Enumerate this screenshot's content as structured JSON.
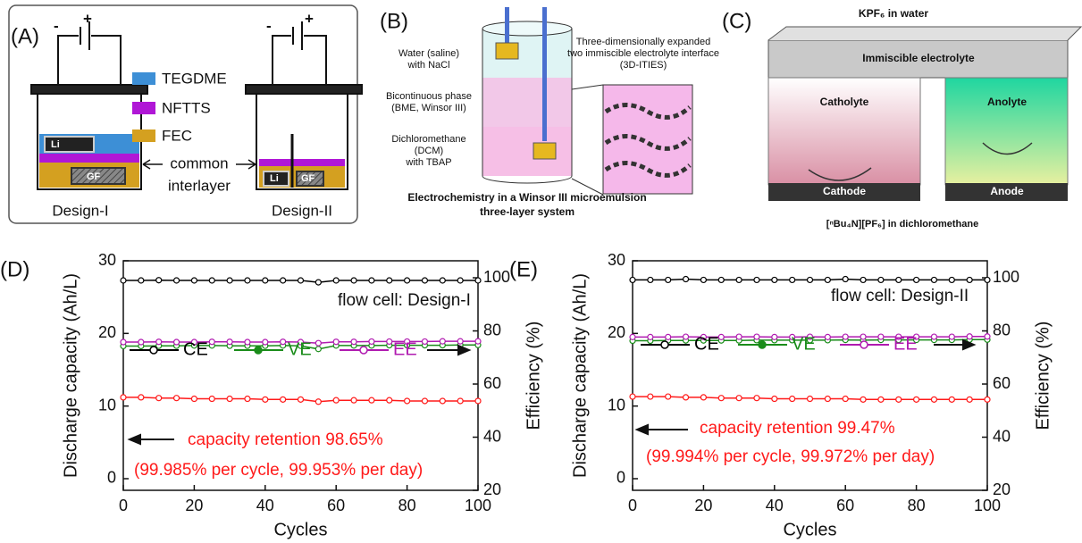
{
  "panel_a": {
    "label": "(A)",
    "terminals": [
      "-",
      "+",
      "-",
      "+"
    ],
    "legend": [
      "TEGDME",
      "NFTTS",
      "FEC"
    ],
    "cell_labels": [
      "Li",
      "GF",
      "Li",
      "GF"
    ],
    "interlayer": [
      "common",
      "interlayer"
    ],
    "designs": [
      "Design-I",
      "Design-II"
    ]
  },
  "panel_b": {
    "label": "(B)",
    "phases": [
      "Water (saline)",
      "with NaCl",
      "Bicontinuous phase",
      "(BME, Winsor III)",
      "Dichloromethane",
      "(DCM)",
      "with TBAP"
    ],
    "interface": [
      "Three-dimensionally expanded",
      "two immiscible electrolyte interface",
      "(3D-ITIES)"
    ],
    "caption": [
      "Electrochemistry in a Winsor III microemulsion",
      "three-layer system"
    ]
  },
  "panel_c": {
    "label": "(C)",
    "top": "KPF₆ in water",
    "middle": "Immiscible electrolyte",
    "catholyte": "Catholyte",
    "anolyte": "Anolyte",
    "cathode": "Cathode",
    "anode": "Anode",
    "bottom": "[ⁿBu₄N][PF₆] in dichloromethane"
  },
  "chart_data": [
    {
      "type": "line",
      "panel_label": "(D)",
      "xlabel": "Cycles",
      "ylabel": "Discharge capacity (Ah/L)",
      "y2label": "Efficiency (%)",
      "annotations": [
        "flow cell: Design-I",
        "capacity retention 98.65%",
        "(99.985% per cycle, 99.953% per day)"
      ],
      "xlim": [
        0,
        100
      ],
      "xticks": [
        0,
        20,
        40,
        60,
        80,
        100
      ],
      "ylim": [
        -1.6,
        30
      ],
      "yticks": [
        0,
        10,
        20,
        30
      ],
      "y2lim": [
        20,
        106.4
      ],
      "y2ticks": [
        20,
        40,
        60,
        80,
        100
      ],
      "x": [
        0,
        5,
        10,
        15,
        20,
        25,
        30,
        35,
        40,
        45,
        50,
        55,
        60,
        65,
        70,
        75,
        80,
        85,
        90,
        95,
        100
      ],
      "series": [
        {
          "color": "#ff1a1a",
          "values": [
            11.2,
            11.2,
            11.1,
            11.1,
            11.0,
            11.0,
            11.0,
            11.0,
            10.9,
            10.9,
            10.9,
            10.6,
            10.8,
            10.8,
            10.8,
            10.8,
            10.7,
            10.7,
            10.7,
            10.7,
            10.7
          ]
        },
        {
          "name": "CE",
          "color": "#000000",
          "axis": "y2",
          "values": [
            99.0,
            99.0,
            99.1,
            99.0,
            99.0,
            99.0,
            99.0,
            99.0,
            99.0,
            99.0,
            99.0,
            98.3,
            99.0,
            99.0,
            99.0,
            99.0,
            99.0,
            99.0,
            99.0,
            99.0,
            99.0
          ]
        },
        {
          "name": "VE",
          "color": "#1a8c1a",
          "axis": "y2",
          "values": [
            74.3,
            74.3,
            74.4,
            74.4,
            74.5,
            74.5,
            74.4,
            74.4,
            74.4,
            74.5,
            74.4,
            73.2,
            74.5,
            74.5,
            74.5,
            74.6,
            74.6,
            74.6,
            74.6,
            74.7,
            74.7
          ]
        },
        {
          "name": "EE",
          "color": "#b01ab0",
          "axis": "y2",
          "values": [
            75.8,
            75.8,
            75.9,
            75.8,
            75.8,
            75.9,
            75.9,
            75.8,
            75.8,
            75.9,
            75.8,
            75.4,
            75.9,
            75.9,
            76.0,
            76.0,
            76.0,
            76.0,
            76.1,
            76.1,
            76.1
          ]
        }
      ]
    },
    {
      "type": "line",
      "panel_label": "(E)",
      "xlabel": "Cycles",
      "ylabel": "Discharge capacity (Ah/L)",
      "y2label": "Efficiency (%)",
      "annotations": [
        "flow cell: Design-II",
        "capacity retention 99.47%",
        "(99.994% per cycle, 99.972% per day)"
      ],
      "xlim": [
        0,
        100
      ],
      "xticks": [
        0,
        20,
        40,
        60,
        80,
        100
      ],
      "ylim": [
        -1.6,
        30
      ],
      "yticks": [
        0,
        10,
        20,
        30
      ],
      "y2lim": [
        20,
        106.4
      ],
      "y2ticks": [
        20,
        40,
        60,
        80,
        100
      ],
      "x": [
        0,
        5,
        10,
        15,
        20,
        25,
        30,
        35,
        40,
        45,
        50,
        55,
        60,
        65,
        70,
        75,
        80,
        85,
        90,
        95,
        100
      ],
      "series": [
        {
          "color": "#ff1a1a",
          "values": [
            11.3,
            11.3,
            11.3,
            11.2,
            11.2,
            11.1,
            11.1,
            11.1,
            11.0,
            11.0,
            11.0,
            11.0,
            11.0,
            10.9,
            10.9,
            10.9,
            10.9,
            10.9,
            10.9,
            10.9,
            10.9
          ]
        },
        {
          "name": "CE",
          "color": "#000000",
          "axis": "y2",
          "values": [
            99.2,
            99.2,
            99.2,
            99.5,
            99.2,
            99.2,
            99.2,
            99.2,
            99.2,
            99.2,
            99.2,
            99.2,
            99.5,
            99.2,
            99.2,
            99.2,
            99.2,
            99.2,
            99.2,
            99.2,
            99.2
          ]
        },
        {
          "name": "VE",
          "color": "#1a8c1a",
          "axis": "y2",
          "values": [
            76.3,
            76.3,
            76.4,
            76.4,
            76.4,
            76.4,
            76.4,
            76.5,
            76.5,
            76.5,
            76.5,
            76.5,
            76.6,
            76.5,
            76.6,
            76.6,
            76.6,
            76.6,
            76.6,
            76.7,
            76.7
          ]
        },
        {
          "name": "EE",
          "color": "#b01ab0",
          "axis": "y2",
          "values": [
            77.7,
            77.7,
            77.7,
            77.8,
            77.7,
            77.7,
            77.8,
            77.8,
            77.7,
            77.7,
            77.8,
            77.7,
            77.8,
            77.8,
            77.8,
            77.8,
            77.8,
            77.8,
            77.8,
            77.9,
            77.9
          ]
        }
      ]
    }
  ]
}
